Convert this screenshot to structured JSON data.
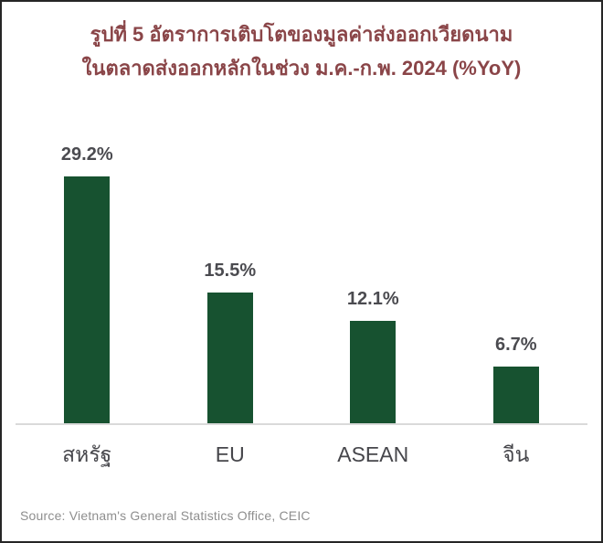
{
  "figure": {
    "title_line1": "รูปที่ 5 อัตราการเติบโตของมูลค่าส่งออกเวียดนาม",
    "title_line2": "ในตลาดส่งออกหลักในช่วง ม.ค.-ก.พ. 2024 (%YoY)",
    "source": "Source: Vietnam's General Statistics Office, CEIC"
  },
  "chart_data": {
    "type": "bar",
    "title": "รูปที่ 5 อัตราการเติบโตของมูลค่าส่งออกเวียดนาม ในตลาดส่งออกหลักในช่วง ม.ค.-ก.พ. 2024 (%YoY)",
    "categories": [
      "สหรัฐ",
      "EU",
      "ASEAN",
      "จีน"
    ],
    "values": [
      29.2,
      15.5,
      12.1,
      6.7
    ],
    "value_labels": [
      "29.2%",
      "15.5%",
      "12.1%",
      "6.7%"
    ],
    "xlabel": "",
    "ylabel": "",
    "unit": "%YoY",
    "ylim": [
      0,
      36
    ],
    "grid": false,
    "legend": false,
    "bar_color": "#175230",
    "axis_line_color": "#dadada"
  },
  "colors": {
    "title_text": "#8a4548",
    "value_label_text": "#4b4b50",
    "category_label_text": "#46464b",
    "source_text": "#8e8e8e",
    "border": "#262626",
    "background": "#ffffff"
  }
}
